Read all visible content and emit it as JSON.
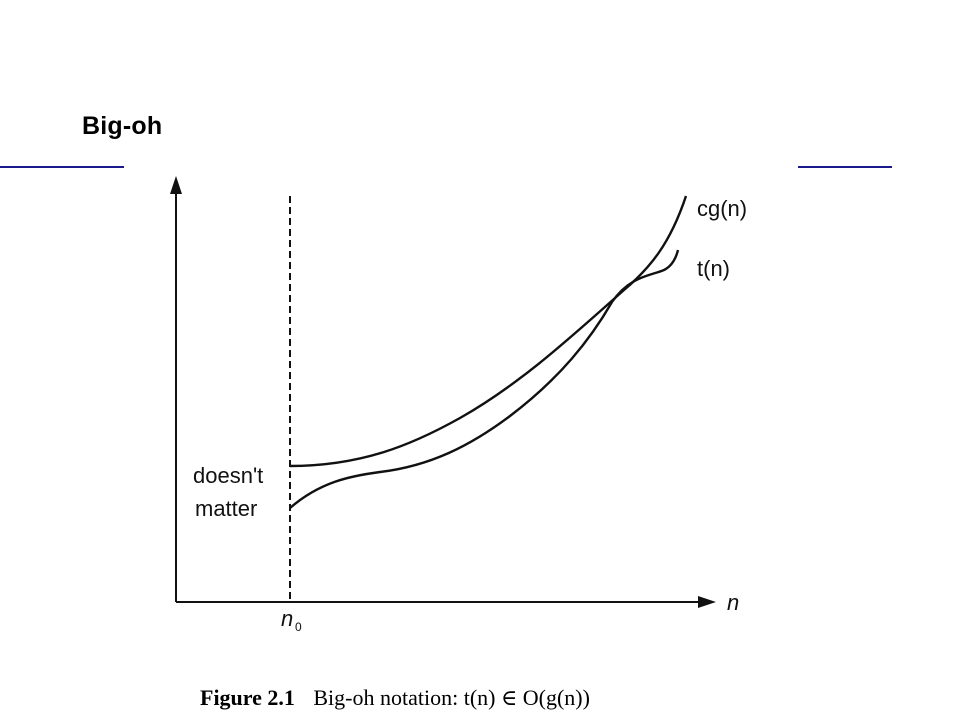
{
  "slide": {
    "title": "Big-oh",
    "rule_color": "#1a1a8c"
  },
  "figure": {
    "curves": [
      {
        "id": "upper",
        "label": "cg(n)"
      },
      {
        "id": "lower",
        "label": "t(n)"
      }
    ],
    "x_axis_label": "n",
    "threshold_label": "n",
    "threshold_subscript": "0",
    "region_label_line1": "doesn't",
    "region_label_line2": "matter",
    "caption_prefix": "Figure 2.1",
    "caption_text": "Big-oh notation: t(n) ∈ O(g(n))"
  }
}
